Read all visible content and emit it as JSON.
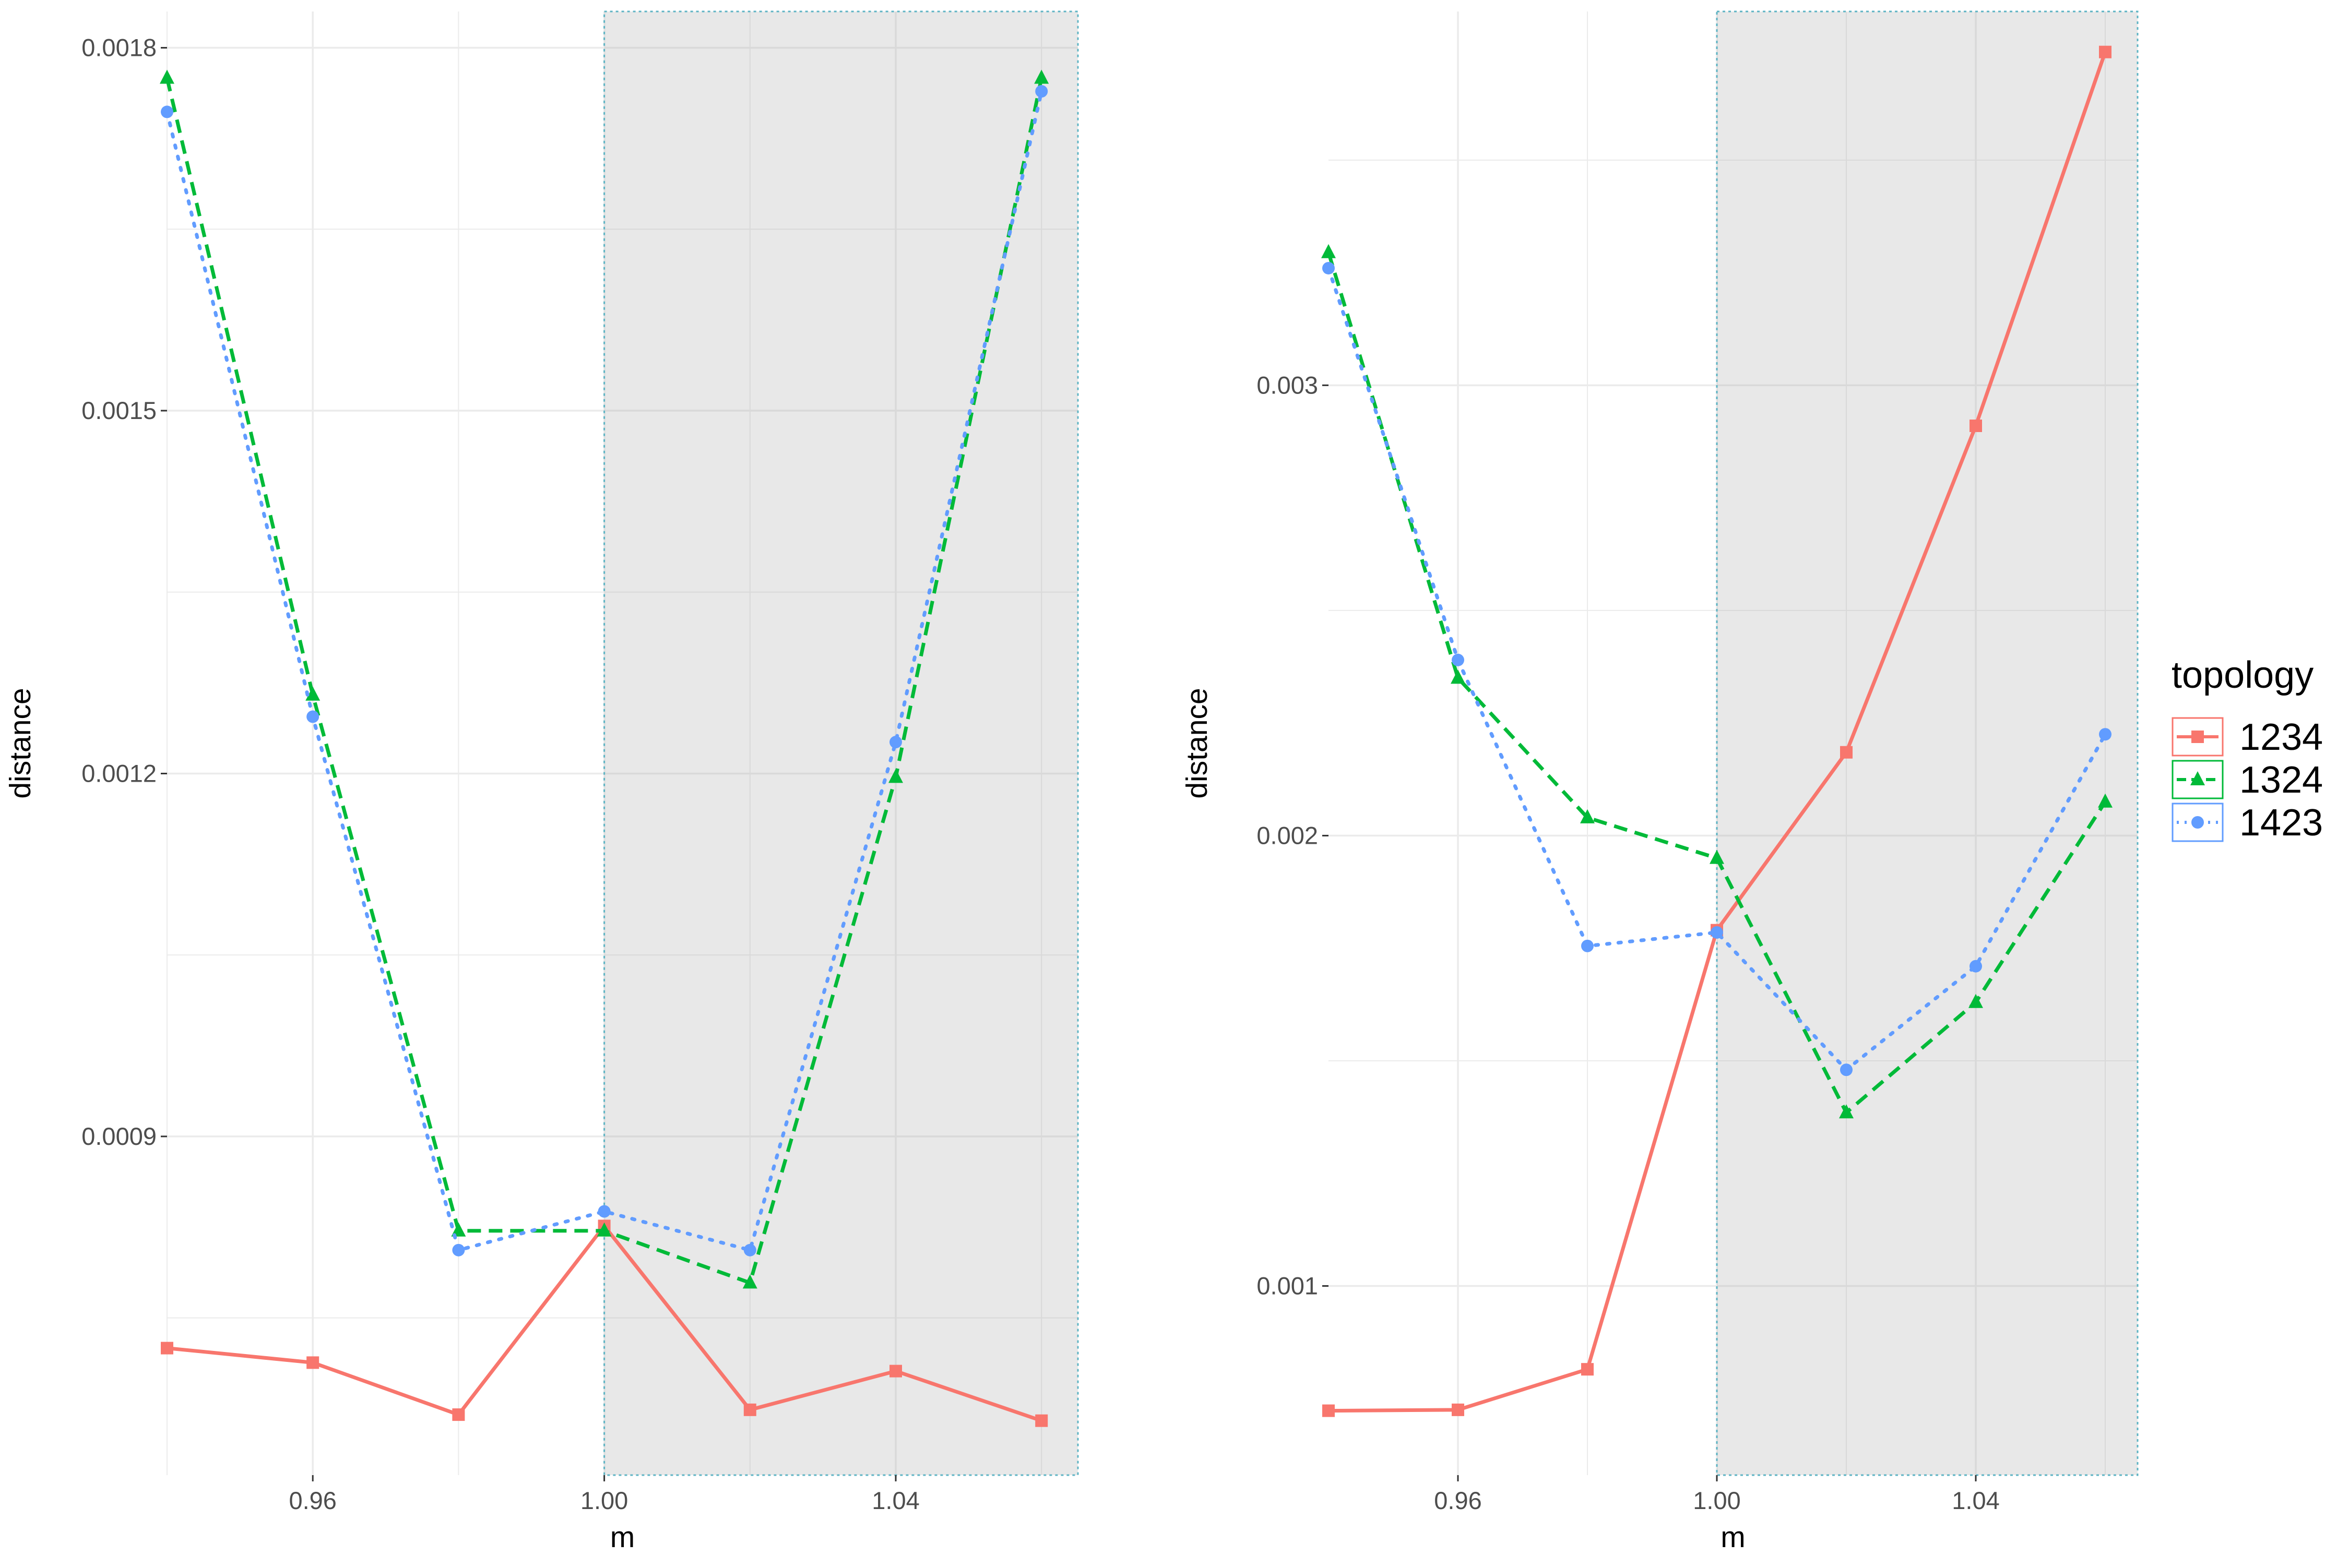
{
  "chart_data": [
    {
      "type": "line",
      "xlabel": "m",
      "ylabel": "distance",
      "xlim": [
        0.94,
        1.065
      ],
      "ylim": [
        0.00062,
        0.00183
      ],
      "x_ticks": [
        {
          "value": 0.96,
          "label": "0.96"
        },
        {
          "value": 1.0,
          "label": "1.00"
        },
        {
          "value": 1.04,
          "label": "1.04"
        }
      ],
      "y_ticks": [
        {
          "value": 0.0009,
          "label": "0.0009"
        },
        {
          "value": 0.0012,
          "label": "0.0012"
        },
        {
          "value": 0.0015,
          "label": "0.0015"
        },
        {
          "value": 0.0018,
          "label": "0.0018"
        }
      ],
      "y_minor": [
        0.00075,
        0.00105,
        0.00135,
        0.00165
      ],
      "x_minor": [
        0.94,
        0.98,
        1.02,
        1.06
      ],
      "shaded_region": [
        1.0,
        1.065
      ],
      "grid": true,
      "series": [
        {
          "name": "1234",
          "x": [
            0.94,
            0.96,
            0.98,
            1.0,
            1.02,
            1.04,
            1.06
          ],
          "values": [
            0.000725,
            0.000713,
            0.00067,
            0.000826,
            0.000674,
            0.000706,
            0.000665
          ]
        },
        {
          "name": "1324",
          "x": [
            0.94,
            0.96,
            0.98,
            1.0,
            1.02,
            1.04,
            1.06
          ],
          "values": [
            0.001775,
            0.001265,
            0.000822,
            0.000822,
            0.000779,
            0.001197,
            0.001775
          ]
        },
        {
          "name": "1423",
          "x": [
            0.94,
            0.96,
            0.98,
            1.0,
            1.02,
            1.04,
            1.06
          ],
          "values": [
            0.001747,
            0.001247,
            0.000806,
            0.000838,
            0.000806,
            0.001226,
            0.001764
          ]
        }
      ]
    },
    {
      "type": "line",
      "xlabel": "m",
      "ylabel": "distance",
      "xlim": [
        0.94,
        1.065
      ],
      "ylim": [
        0.00058,
        0.00383
      ],
      "x_ticks": [
        {
          "value": 0.96,
          "label": "0.96"
        },
        {
          "value": 1.0,
          "label": "1.00"
        },
        {
          "value": 1.04,
          "label": "1.04"
        }
      ],
      "y_ticks": [
        {
          "value": 0.001,
          "label": "0.001"
        },
        {
          "value": 0.002,
          "label": "0.002"
        },
        {
          "value": 0.003,
          "label": "0.003"
        }
      ],
      "y_minor": [
        0.0015,
        0.0025,
        0.0035
      ],
      "x_minor": [
        0.98,
        1.02,
        1.06
      ],
      "shaded_region": [
        1.0,
        1.065
      ],
      "grid": true,
      "series": [
        {
          "name": "1234",
          "x": [
            0.94,
            0.96,
            0.98,
            1.0,
            1.02,
            1.04,
            1.06
          ],
          "values": [
            0.000723,
            0.000725,
            0.000815,
            0.00179,
            0.002185,
            0.00291,
            0.00374
          ]
        },
        {
          "name": "1324",
          "x": [
            0.94,
            0.96,
            0.98,
            1.0,
            1.02,
            1.04,
            1.06
          ],
          "values": [
            0.003295,
            0.00235,
            0.00204,
            0.00195,
            0.001385,
            0.00163,
            0.002075
          ]
        },
        {
          "name": "1423",
          "x": [
            0.94,
            0.96,
            0.98,
            1.0,
            1.02,
            1.04,
            1.06
          ],
          "values": [
            0.00326,
            0.00239,
            0.001755,
            0.001785,
            0.00148,
            0.00171,
            0.002225
          ]
        }
      ]
    }
  ],
  "legend": {
    "title": "topology",
    "position": "right",
    "items": [
      {
        "label": "1234",
        "color": "#F8766D",
        "shape": "square",
        "line": "solid"
      },
      {
        "label": "1324",
        "color": "#00BA38",
        "shape": "triangle",
        "line": "dashed"
      },
      {
        "label": "1423",
        "color": "#619CFF",
        "shape": "circle",
        "line": "dotted"
      }
    ]
  }
}
